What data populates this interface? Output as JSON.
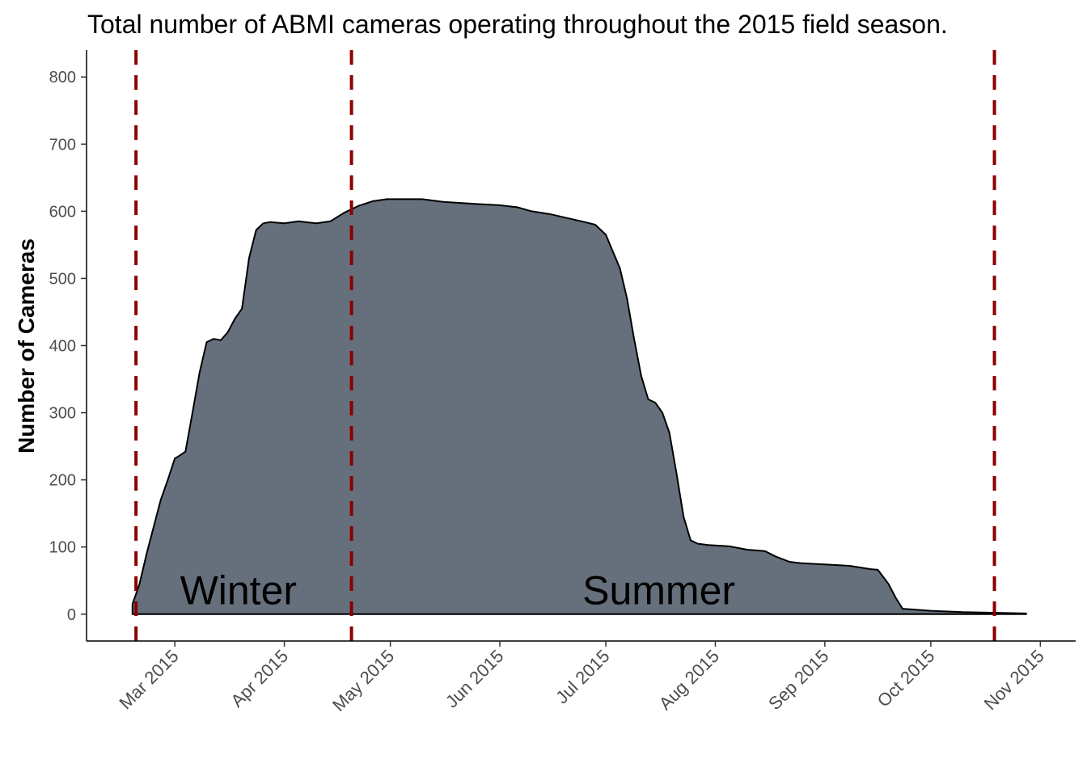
{
  "chart_data": {
    "type": "area",
    "title": "Total number of ABMI cameras operating throughout the 2015 field season.",
    "xlabel": "",
    "ylabel": "Number of Cameras",
    "x_ticks": [
      {
        "label": "Mar 2015",
        "date": "2015-03-01"
      },
      {
        "label": "Apr 2015",
        "date": "2015-04-01"
      },
      {
        "label": "May 2015",
        "date": "2015-05-01"
      },
      {
        "label": "Jun 2015",
        "date": "2015-06-01"
      },
      {
        "label": "Jul 2015",
        "date": "2015-07-01"
      },
      {
        "label": "Aug 2015",
        "date": "2015-08-01"
      },
      {
        "label": "Sep 2015",
        "date": "2015-09-01"
      },
      {
        "label": "Oct 2015",
        "date": "2015-10-01"
      },
      {
        "label": "Nov 2015",
        "date": "2015-11-01"
      }
    ],
    "xlim": [
      "2015-02-04",
      "2015-11-11"
    ],
    "y_ticks": [
      0,
      100,
      200,
      300,
      400,
      500,
      600,
      700,
      800
    ],
    "ylim": [
      -40,
      840
    ],
    "grid": false,
    "colors": {
      "area_fill": "#66707c",
      "area_stroke": "#000000",
      "vline": "#8b0000"
    },
    "vlines": [
      "2015-02-18",
      "2015-04-20",
      "2015-10-19"
    ],
    "annotations": [
      {
        "text": "Winter",
        "x": "2015-03-19",
        "y": 35
      },
      {
        "text": "Summer",
        "x": "2015-07-16",
        "y": 35
      }
    ],
    "series": [
      {
        "points": [
          [
            "2015-02-17",
            0
          ],
          [
            "2015-02-17",
            15
          ],
          [
            "2015-02-19",
            45
          ],
          [
            "2015-02-21",
            90
          ],
          [
            "2015-02-23",
            130
          ],
          [
            "2015-02-25",
            170
          ],
          [
            "2015-02-27",
            200
          ],
          [
            "2015-03-01",
            232
          ],
          [
            "2015-03-02",
            235
          ],
          [
            "2015-03-04",
            242
          ],
          [
            "2015-03-06",
            300
          ],
          [
            "2015-03-08",
            360
          ],
          [
            "2015-03-10",
            405
          ],
          [
            "2015-03-12",
            410
          ],
          [
            "2015-03-14",
            408
          ],
          [
            "2015-03-16",
            420
          ],
          [
            "2015-03-18",
            440
          ],
          [
            "2015-03-20",
            455
          ],
          [
            "2015-03-22",
            530
          ],
          [
            "2015-03-24",
            572
          ],
          [
            "2015-03-26",
            582
          ],
          [
            "2015-03-28",
            584
          ],
          [
            "2015-04-01",
            582
          ],
          [
            "2015-04-05",
            585
          ],
          [
            "2015-04-10",
            582
          ],
          [
            "2015-04-14",
            585
          ],
          [
            "2015-04-18",
            598
          ],
          [
            "2015-04-22",
            608
          ],
          [
            "2015-04-26",
            615
          ],
          [
            "2015-04-30",
            618
          ],
          [
            "2015-05-10",
            618
          ],
          [
            "2015-05-16",
            614
          ],
          [
            "2015-05-25",
            611
          ],
          [
            "2015-06-01",
            609
          ],
          [
            "2015-06-06",
            606
          ],
          [
            "2015-06-10",
            600
          ],
          [
            "2015-06-15",
            596
          ],
          [
            "2015-06-20",
            590
          ],
          [
            "2015-06-25",
            584
          ],
          [
            "2015-06-28",
            580
          ],
          [
            "2015-07-01",
            565
          ],
          [
            "2015-07-03",
            540
          ],
          [
            "2015-07-05",
            515
          ],
          [
            "2015-07-07",
            470
          ],
          [
            "2015-07-09",
            410
          ],
          [
            "2015-07-11",
            355
          ],
          [
            "2015-07-13",
            320
          ],
          [
            "2015-07-15",
            315
          ],
          [
            "2015-07-17",
            300
          ],
          [
            "2015-07-19",
            270
          ],
          [
            "2015-07-21",
            210
          ],
          [
            "2015-07-23",
            145
          ],
          [
            "2015-07-25",
            110
          ],
          [
            "2015-07-27",
            105
          ],
          [
            "2015-07-30",
            103
          ],
          [
            "2015-08-05",
            101
          ],
          [
            "2015-08-10",
            96
          ],
          [
            "2015-08-15",
            94
          ],
          [
            "2015-08-18",
            86
          ],
          [
            "2015-08-22",
            78
          ],
          [
            "2015-08-25",
            76
          ],
          [
            "2015-09-01",
            74
          ],
          [
            "2015-09-08",
            72
          ],
          [
            "2015-09-14",
            67
          ],
          [
            "2015-09-16",
            66
          ],
          [
            "2015-09-19",
            45
          ],
          [
            "2015-09-21",
            25
          ],
          [
            "2015-09-23",
            8
          ],
          [
            "2015-09-26",
            7
          ],
          [
            "2015-10-01",
            5
          ],
          [
            "2015-10-10",
            3
          ],
          [
            "2015-10-20",
            2
          ],
          [
            "2015-10-28",
            1
          ],
          [
            "2015-10-28",
            0
          ]
        ]
      }
    ]
  }
}
